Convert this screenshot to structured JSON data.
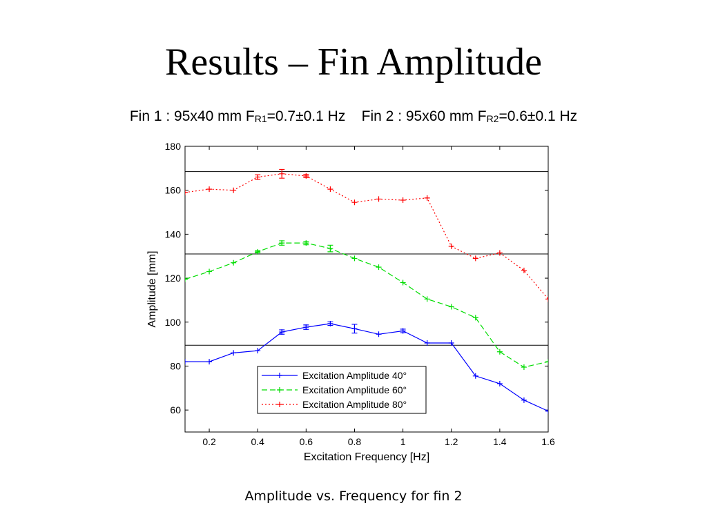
{
  "slide": {
    "title": "Results – Fin Amplitude",
    "fin1_text": "Fin 1 : 95x40 mm F",
    "fin1_sub": "R1",
    "fin1_value": "=0.7±0.1 Hz",
    "fin2_text": "Fin 2 : 95x60 mm F",
    "fin2_sub": "R2",
    "fin2_value": "=0.6±0.1 Hz",
    "caption": "Amplitude vs. Frequency for fin 2"
  },
  "chart_data": {
    "type": "line",
    "xlabel": "Excitation Frequency [Hz]",
    "ylabel": "Amplitude [mm]",
    "xlim": [
      0.1,
      1.6
    ],
    "ylim": [
      50,
      180
    ],
    "xticks": [
      0.2,
      0.4,
      0.6,
      0.8,
      1,
      1.2,
      1.4,
      1.6
    ],
    "xtick_labels": [
      "0.2",
      "0.4",
      "0.6",
      "0.8",
      "1",
      "1.2",
      "1.4",
      "1.6"
    ],
    "yticks": [
      60,
      80,
      100,
      120,
      140,
      160,
      180
    ],
    "ytick_labels": [
      "60",
      "80",
      "100",
      "120",
      "140",
      "160",
      "180"
    ],
    "grid": false,
    "legend_position": "bottom-center",
    "reference_lines_y": [
      89.5,
      131,
      168.5
    ],
    "x": [
      0.1,
      0.2,
      0.3,
      0.4,
      0.5,
      0.6,
      0.7,
      0.8,
      0.9,
      1.0,
      1.1,
      1.2,
      1.3,
      1.4,
      1.5,
      1.6
    ],
    "series": [
      {
        "name": "Excitation Amplitude 40°",
        "color": "#0000ff",
        "style": "solid",
        "values": [
          82,
          82,
          86,
          87,
          95.5,
          97.7,
          99.3,
          97,
          94.5,
          96,
          90.5,
          90.5,
          75.5,
          72,
          64.5,
          59.5
        ],
        "errors": [
          0,
          0,
          0,
          0,
          1,
          1,
          0.8,
          2,
          0,
          0.8,
          0,
          0,
          0,
          0,
          0,
          0
        ]
      },
      {
        "name": "Excitation Amplitude 60°",
        "color": "#00dd00",
        "style": "dashed",
        "values": [
          119.5,
          123,
          127,
          132,
          136,
          136,
          133.5,
          129,
          125,
          118,
          110.5,
          107,
          102,
          86.5,
          79.5,
          82
        ],
        "errors": [
          0,
          0,
          0,
          0.5,
          1,
          0.8,
          1.5,
          0,
          0,
          0,
          0,
          0,
          0,
          0,
          0,
          0
        ]
      },
      {
        "name": "Excitation Amplitude 80°",
        "color": "#ff0000",
        "style": "dotted",
        "values": [
          159,
          160.5,
          160,
          166,
          167.5,
          166.5,
          160.5,
          154.5,
          156,
          155.5,
          156.5,
          134.5,
          129,
          131.5,
          123.5,
          110.5
        ],
        "errors": [
          0,
          0,
          0,
          1,
          2,
          0.7,
          0,
          0,
          0,
          0,
          0,
          0,
          0,
          0,
          0,
          0
        ]
      }
    ]
  }
}
